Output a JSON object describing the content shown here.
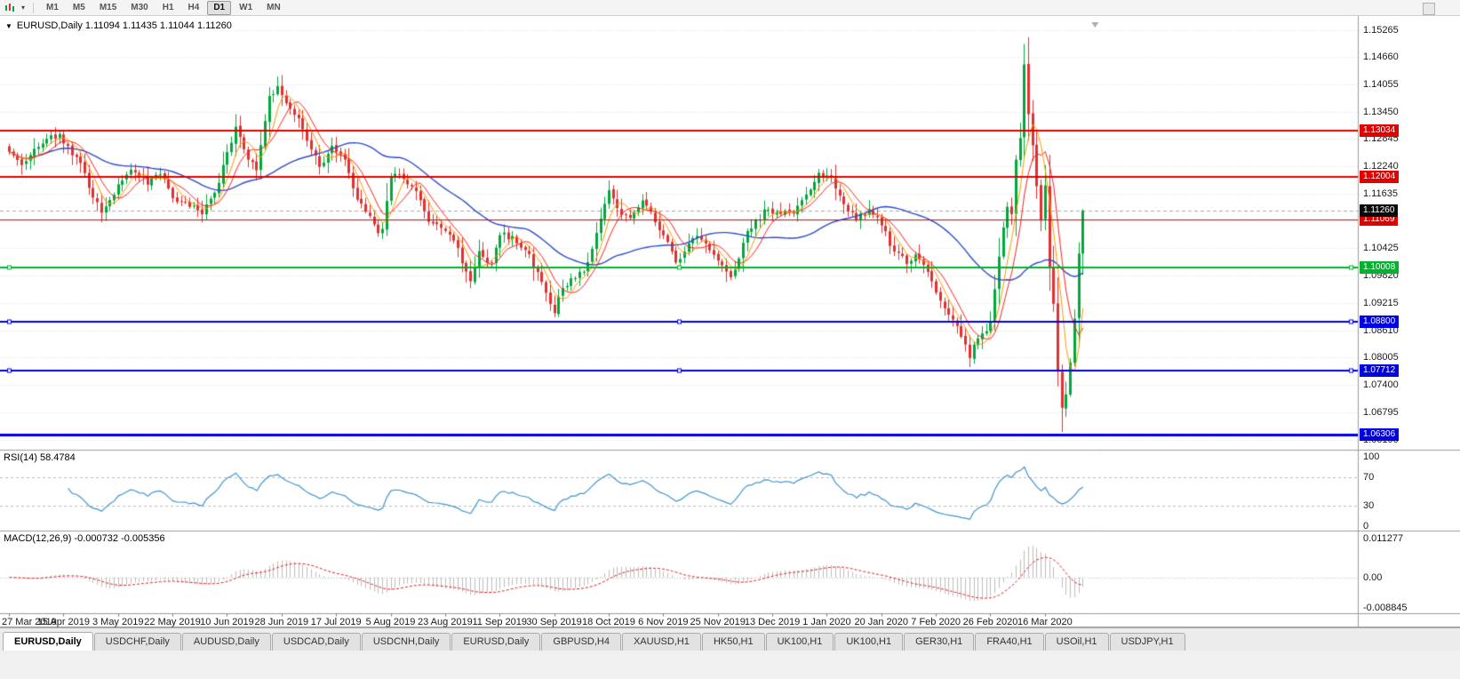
{
  "colors": {
    "bull": "#00A83C",
    "bear": "#E03030",
    "ma_fast": "#FF9900",
    "ma_mid": "#FF2020",
    "ma_slow": "#2F4DC8",
    "rsi_line": "#4095D0",
    "macd_hist": "#BDBDBD",
    "macd_signal": "#E02020",
    "grid": "#DCDCDC",
    "panel_border": "#9B9B9B",
    "bid_line": "#AAAAAA"
  },
  "toolbar": {
    "timeframes": [
      "M1",
      "M5",
      "M15",
      "M30",
      "H1",
      "H4",
      "D1",
      "W1",
      "MN"
    ],
    "active_timeframe": "D1"
  },
  "chart": {
    "collapse_arrow": "▼",
    "title": "EURUSD,Daily 1.11094 1.11435 1.11044 1.11260",
    "symbol": "EURUSD,Daily",
    "open": "1.11094",
    "high": "1.11435",
    "low": "1.11044",
    "close": "1.11260"
  },
  "price_scale": {
    "labels": [
      "1.15265",
      "1.14660",
      "1.14055",
      "1.13450",
      "1.12845",
      "1.12240",
      "1.11635",
      "1.11030",
      "1.10425",
      "1.09820",
      "1.09215",
      "1.08610",
      "1.08005",
      "1.07400",
      "1.06795",
      "1.06190"
    ]
  },
  "current_price": {
    "label": "1.11260",
    "price": 1.1126,
    "bg": "#0A0A0A"
  },
  "hlines": [
    {
      "label": "1.13034",
      "price": 1.13034,
      "color": "#E00000",
      "width": 2,
      "handles": false
    },
    {
      "label": "1.12004",
      "price": 1.12004,
      "color": "#E00000",
      "width": 2,
      "handles": false
    },
    {
      "label": "1.11069",
      "price": 1.11069,
      "color": "#E00000",
      "width": 1,
      "handles": false
    },
    {
      "label": "1.10008",
      "price": 1.10008,
      "color": "#00B22D",
      "width": 2,
      "handles": true
    },
    {
      "label": "1.08800",
      "price": 1.088,
      "color": "#0000E0",
      "width": 2,
      "handles": true
    },
    {
      "label": "1.07712",
      "price": 1.07712,
      "color": "#0000E0",
      "width": 2,
      "handles": true
    },
    {
      "label": "1.06306",
      "price": 1.06306,
      "color": "#0000E0",
      "width": 3,
      "handles": false
    }
  ],
  "rsi": {
    "title": "RSI(14) 58.4784",
    "period": 14,
    "value": "58.4784",
    "scale": [
      "100",
      "70",
      "30",
      "0"
    ],
    "levels": [
      70,
      30
    ]
  },
  "macd": {
    "title": "MACD(12,26,9) -0.000732 -0.005356",
    "fast": 12,
    "slow": 26,
    "signal": 9,
    "values": [
      "-0.000732",
      "-0.005356"
    ],
    "scale": [
      "0.011277",
      "0.00",
      "-0.008845"
    ],
    "max": 0.011277,
    "min": -0.008845
  },
  "date_axis": [
    "27 Mar 2019",
    "15 Apr 2019",
    "3 May 2019",
    "22 May 2019",
    "10 Jun 2019",
    "28 Jun 2019",
    "17 Jul 2019",
    "5 Aug 2019",
    "23 Aug 2019",
    "11 Sep 2019",
    "30 Sep 2019",
    "18 Oct 2019",
    "6 Nov 2019",
    "25 Nov 2019",
    "13 Dec 2019",
    "1 Jan 2020",
    "20 Jan 2020",
    "7 Feb 2020",
    "26 Feb 2020",
    "16 Mar 2020"
  ],
  "tabs": [
    "EURUSD,Daily",
    "USDCHF,Daily",
    "AUDUSD,Daily",
    "USDCAD,Daily",
    "USDCNH,Daily",
    "EURUSD,Daily",
    "GBPUSD,H4",
    "XAUUSD,H1",
    "HK50,H1",
    "UK100,H1",
    "UK100,H1",
    "GER30,H1",
    "FRA40,H1",
    "USOil,H1",
    "USDJPY,H1"
  ],
  "active_tab_index": 0,
  "chart_data": {
    "type": "candlestick",
    "symbol": "EURUSD",
    "timeframe": "Daily",
    "n_candles": 257,
    "label_step": 13,
    "price_anchors": [
      [
        0,
        1.1255
      ],
      [
        3,
        1.1225
      ],
      [
        6,
        1.1262
      ],
      [
        9,
        1.1285
      ],
      [
        12,
        1.1295
      ],
      [
        14,
        1.127
      ],
      [
        17,
        1.123
      ],
      [
        20,
        1.1155
      ],
      [
        22,
        1.112
      ],
      [
        26,
        1.1185
      ],
      [
        29,
        1.1215
      ],
      [
        33,
        1.1185
      ],
      [
        36,
        1.1205
      ],
      [
        39,
        1.1155
      ],
      [
        43,
        1.1135
      ],
      [
        46,
        1.112
      ],
      [
        49,
        1.1165
      ],
      [
        52,
        1.1255
      ],
      [
        54,
        1.131
      ],
      [
        57,
        1.124
      ],
      [
        59,
        1.1215
      ],
      [
        62,
        1.138
      ],
      [
        64,
        1.14
      ],
      [
        66,
        1.1365
      ],
      [
        69,
        1.133
      ],
      [
        71,
        1.128
      ],
      [
        74,
        1.1225
      ],
      [
        77,
        1.127
      ],
      [
        80,
        1.124
      ],
      [
        83,
        1.115
      ],
      [
        86,
        1.1115
      ],
      [
        88,
        1.1075
      ],
      [
        89,
        1.1085
      ],
      [
        91,
        1.12
      ],
      [
        93,
        1.1205
      ],
      [
        97,
        1.117
      ],
      [
        100,
        1.11
      ],
      [
        103,
        1.109
      ],
      [
        106,
        1.106
      ],
      [
        109,
        1.099
      ],
      [
        110,
        1.097
      ],
      [
        112,
        1.1035
      ],
      [
        115,
        1.101
      ],
      [
        117,
        1.107
      ],
      [
        120,
        1.107
      ],
      [
        123,
        1.104
      ],
      [
        126,
        1.099
      ],
      [
        128,
        1.0945
      ],
      [
        130,
        1.09
      ],
      [
        131,
        1.0935
      ],
      [
        134,
        1.0975
      ],
      [
        137,
        1.099
      ],
      [
        139,
        1.104
      ],
      [
        142,
        1.114
      ],
      [
        143,
        1.117
      ],
      [
        145,
        1.113
      ],
      [
        148,
        1.111
      ],
      [
        151,
        1.115
      ],
      [
        154,
        1.11
      ],
      [
        156,
        1.107
      ],
      [
        159,
        1.101
      ],
      [
        162,
        1.1055
      ],
      [
        164,
        1.107
      ],
      [
        167,
        1.104
      ],
      [
        169,
        1.1015
      ],
      [
        172,
        1.098
      ],
      [
        174,
        1.102
      ],
      [
        176,
        1.108
      ],
      [
        178,
        1.1105
      ],
      [
        181,
        1.113
      ],
      [
        184,
        1.112
      ],
      [
        187,
        1.112
      ],
      [
        190,
        1.116
      ],
      [
        193,
        1.121
      ],
      [
        196,
        1.12
      ],
      [
        198,
        1.116
      ],
      [
        200,
        1.1125
      ],
      [
        202,
        1.1105
      ],
      [
        205,
        1.113
      ],
      [
        208,
        1.1095
      ],
      [
        211,
        1.1035
      ],
      [
        214,
        1.101
      ],
      [
        216,
        1.103
      ],
      [
        219,
        1.099
      ],
      [
        221,
        1.0945
      ],
      [
        224,
        1.0895
      ],
      [
        226,
        1.087
      ],
      [
        229,
        1.08
      ],
      [
        231,
        1.0845
      ],
      [
        233,
        1.086
      ],
      [
        234,
        1.088
      ],
      [
        235,
        1.095
      ],
      [
        236,
        1.1025
      ],
      [
        237,
        1.109
      ],
      [
        238,
        1.1135
      ],
      [
        239,
        1.112
      ],
      [
        240,
        1.124
      ],
      [
        241,
        1.1285
      ],
      [
        242,
        1.145
      ],
      [
        243,
        1.134
      ],
      [
        244,
        1.127
      ],
      [
        245,
        1.118
      ],
      [
        246,
        1.1105
      ],
      [
        247,
        1.118
      ],
      [
        248,
        1.1
      ],
      [
        249,
        1.092
      ],
      [
        250,
        1.077
      ],
      [
        251,
        1.069
      ],
      [
        252,
        1.072
      ],
      [
        253,
        1.079
      ],
      [
        254,
        1.0885
      ],
      [
        255,
        1.103
      ],
      [
        256,
        1.1126
      ]
    ],
    "extremes": [
      {
        "i": 242,
        "high": 1.1495
      },
      {
        "i": 251,
        "low": 1.0636
      }
    ],
    "moving_averages": [
      {
        "period": 5,
        "color_key": "ma_fast"
      },
      {
        "period": 8,
        "color_key": "ma_mid"
      },
      {
        "period": 34,
        "color_key": "ma_slow"
      }
    ]
  }
}
